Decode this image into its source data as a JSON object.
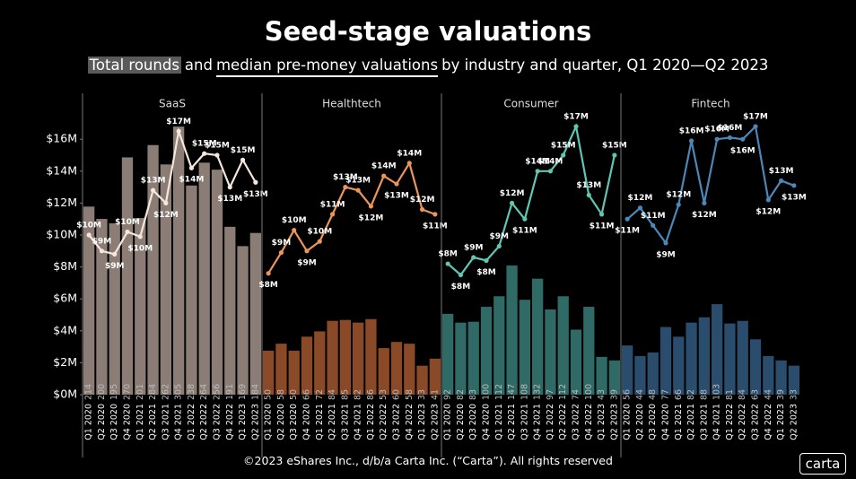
{
  "header": {
    "title": "Seed-stage valuations",
    "subtitle": [
      "Total rounds",
      "and",
      "median pre-money valuations",
      "by industry and quarter, Q1 2020—Q2 2023"
    ]
  },
  "chart_data": [
    {
      "type": "combo",
      "title": "SaaS",
      "categories": [
        "Q1 2020",
        "Q2 2020",
        "Q3 2020",
        "Q4 2020",
        "Q1 2021",
        "Q2 2021",
        "Q3 2021",
        "Q4 2021",
        "Q1 2022",
        "Q2 2022",
        "Q3 2022",
        "Q4 2022",
        "Q1 2023",
        "Q2 2023"
      ],
      "ylim": [
        0,
        18
      ],
      "y2lim": [
        0,
        327
      ],
      "yticks": [
        {
          "value": 0,
          "label": "$0M"
        },
        {
          "value": 2,
          "label": "$2M"
        },
        {
          "value": 4,
          "label": "$4M"
        },
        {
          "value": 6,
          "label": "$6M"
        },
        {
          "value": 8,
          "label": "$8M"
        },
        {
          "value": 10,
          "label": "$10M"
        },
        {
          "value": 12,
          "label": "$12M"
        },
        {
          "value": 14,
          "label": "$14M"
        },
        {
          "value": 16,
          "label": "$16M"
        }
      ],
      "series": [
        {
          "color": "#8b7d75",
          "axis": "y2",
          "values": [
            214,
            200,
            195,
            270,
            201,
            284,
            262,
            305,
            238,
            264,
            256,
            191,
            169,
            184
          ]
        },
        {
          "color": "#f6e7dd",
          "values": [
            10.0,
            9.0,
            8.8,
            10.2,
            9.9,
            12.8,
            12.0,
            16.5,
            14.2,
            15.1,
            15.0,
            13.0,
            14.7,
            13.3
          ],
          "value_labels": [
            "$10M",
            "$9M",
            "$9M",
            "$10M",
            "$10M",
            "$13M",
            "$12M",
            "$17M",
            "$14M",
            "$15M",
            "$15M",
            "$13M",
            "$15M",
            "$13M"
          ]
        }
      ]
    },
    {
      "type": "combo",
      "title": "Healthtech",
      "categories": [
        "Q1 2020",
        "Q2 2020",
        "Q3 2020",
        "Q4 2020",
        "Q1 2021",
        "Q2 2021",
        "Q3 2021",
        "Q4 2021",
        "Q1 2022",
        "Q2 2022",
        "Q3 2022",
        "Q4 2022",
        "Q1 2023",
        "Q2 2023"
      ],
      "ylim": [
        0,
        18
      ],
      "y2lim": [
        0,
        327
      ],
      "series": [
        {
          "color": "#8a4a27",
          "axis": "y2",
          "values": [
            50,
            58,
            50,
            66,
            72,
            84,
            85,
            82,
            86,
            53,
            60,
            58,
            33,
            41
          ]
        },
        {
          "color": "#ea955c",
          "values": [
            7.6,
            8.9,
            10.3,
            9.0,
            9.6,
            11.3,
            13.0,
            12.8,
            11.8,
            13.7,
            13.2,
            14.5,
            11.6,
            11.3
          ],
          "value_labels": [
            "$8M",
            "$9M",
            "$10M",
            "$9M",
            "$10M",
            "$11M",
            "$13M",
            "$13M",
            "$12M",
            "$14M",
            "$13M",
            "$14M",
            "$12M",
            "$11M"
          ]
        }
      ]
    },
    {
      "type": "combo",
      "title": "Consumer",
      "categories": [
        "Q1 2020",
        "Q2 2020",
        "Q3 2020",
        "Q4 2020",
        "Q1 2021",
        "Q2 2021",
        "Q3 2021",
        "Q4 2021",
        "Q1 2022",
        "Q2 2022",
        "Q3 2022",
        "Q4 2022",
        "Q1 2023",
        "Q2 2023"
      ],
      "ylim": [
        0,
        18
      ],
      "y2lim": [
        0,
        327
      ],
      "series": [
        {
          "color": "#2f6a66",
          "axis": "y2",
          "values": [
            92,
            82,
            83,
            100,
            112,
            147,
            108,
            132,
            97,
            112,
            74,
            100,
            43,
            39
          ]
        },
        {
          "color": "#5fc6b2",
          "values": [
            8.2,
            7.5,
            8.6,
            8.4,
            9.3,
            12.0,
            11.0,
            14.0,
            14.0,
            15.0,
            16.8,
            12.5,
            11.3,
            15.0
          ],
          "value_labels": [
            "$8M",
            "$8M",
            "$9M",
            "$8M",
            "$9M",
            "$12M",
            "$11M",
            "$14M",
            "$14M",
            "$15M",
            "$17M",
            "$13M",
            "$11M",
            "$15M"
          ]
        }
      ]
    },
    {
      "type": "combo",
      "title": "Fintech",
      "categories": [
        "Q1 2020",
        "Q2 2020",
        "Q3 2020",
        "Q4 2020",
        "Q1 2021",
        "Q2 2021",
        "Q3 2021",
        "Q4 2021",
        "Q1 2022",
        "Q2 2022",
        "Q3 2022",
        "Q4 2022",
        "Q1 2023",
        "Q2 2023"
      ],
      "ylim": [
        0,
        18
      ],
      "y2lim": [
        0,
        327
      ],
      "series": [
        {
          "color": "#2a4c6d",
          "axis": "y2",
          "values": [
            56,
            44,
            48,
            77,
            66,
            82,
            88,
            103,
            81,
            84,
            63,
            44,
            39,
            33
          ]
        },
        {
          "color": "#4b88b8",
          "values": [
            11.0,
            11.7,
            10.6,
            9.5,
            11.9,
            15.9,
            12.0,
            16.0,
            16.1,
            16.0,
            16.8,
            12.2,
            13.4,
            13.1
          ],
          "value_labels": [
            "$11M",
            "$12M",
            "$11M",
            "$9M",
            "$12M",
            "$16M",
            "$12M",
            "$16M",
            "$16M",
            "$16M",
            "$17M",
            "$12M",
            "$13M",
            "$13M"
          ]
        }
      ]
    }
  ],
  "footer": {
    "copyright": "©2023 eShares Inc., d/b/a Carta Inc. (“Carta”). All rights reserved",
    "logo": "carta"
  }
}
